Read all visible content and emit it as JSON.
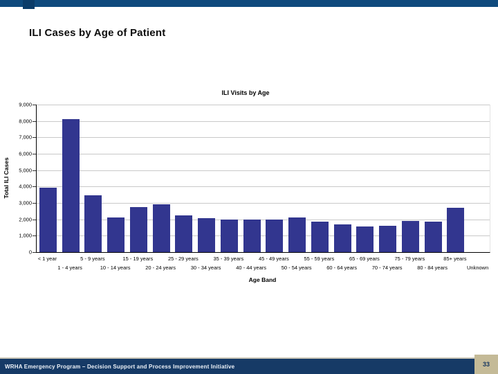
{
  "slide": {
    "title": "ILI Cases by Age of Patient",
    "footer_text": "WRHA Emergency Program – Decision Support and Process Improvement Initiative",
    "page_number": "33"
  },
  "colors": {
    "top_bar": "#0f4a7d",
    "footer_bar": "#163a66",
    "page_number_box": "#c4ba97",
    "bar_fill": "#32368f",
    "gridline": "#c9c9c9",
    "axis": "#000000"
  },
  "chart_data": {
    "type": "bar",
    "title": "ILI Visits by Age",
    "xlabel": "Age Band",
    "ylabel": "Total ILI Cases",
    "ylim": [
      0,
      9000
    ],
    "grid": true,
    "legend_position": "none",
    "yticks": [
      0,
      1000,
      2000,
      3000,
      4000,
      5000,
      6000,
      7000,
      8000,
      9000
    ],
    "ytick_labels": [
      "0",
      "1,000",
      "2,000",
      "3,000",
      "4,000",
      "5,000",
      "6,000",
      "7,000",
      "8,000",
      "9,000"
    ],
    "categories": [
      "< 1 year",
      "1 - 4 years",
      "5 - 9 years",
      "10 - 14 years",
      "15 - 19 years",
      "20 - 24 years",
      "25 - 29 years",
      "30 - 34 years",
      "35 - 39 years",
      "40 - 44 years",
      "45 - 49 years",
      "50 - 54 years",
      "55 - 59 years",
      "60 - 64 years",
      "65 - 69 years",
      "70 - 74 years",
      "75 - 79 years",
      "80 - 84 years",
      "85+ years",
      "Unknown"
    ],
    "values": [
      3950,
      8100,
      3450,
      2100,
      2750,
      2900,
      2250,
      2050,
      2000,
      2000,
      2000,
      2100,
      1850,
      1700,
      1550,
      1600,
      1900,
      1850,
      2700,
      0
    ]
  }
}
